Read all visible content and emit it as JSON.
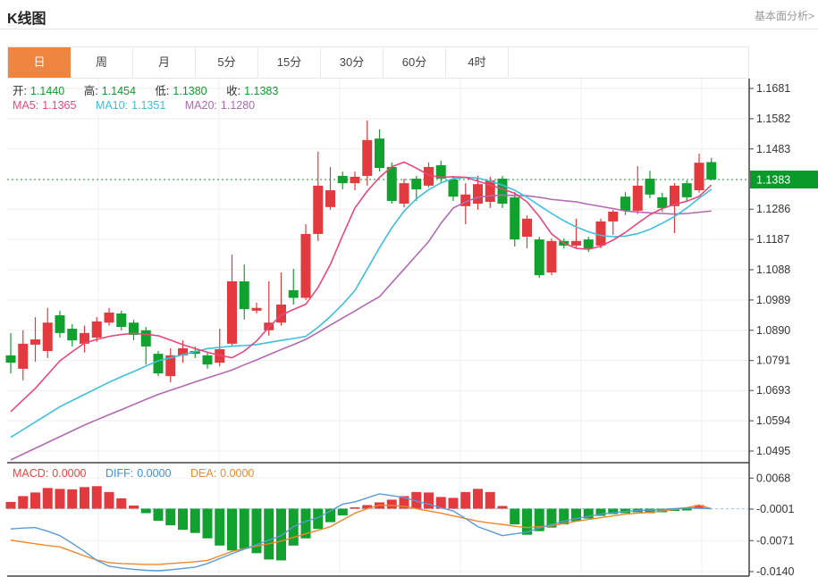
{
  "header": {
    "title": "K线图",
    "link": "基本面分析>"
  },
  "tabs": [
    {
      "key": "day",
      "label": "日",
      "active": true
    },
    {
      "key": "week",
      "label": "周",
      "active": false
    },
    {
      "key": "month",
      "label": "月",
      "active": false
    },
    {
      "key": "5min",
      "label": "5分",
      "active": false
    },
    {
      "key": "15min",
      "label": "15分",
      "active": false
    },
    {
      "key": "30min",
      "label": "30分",
      "active": false
    },
    {
      "key": "60min",
      "label": "60分",
      "active": false
    },
    {
      "key": "4hour",
      "label": "4时",
      "active": false
    }
  ],
  "ohlc": {
    "open_label": "开:",
    "open": "1.1440",
    "high_label": "高:",
    "high": "1.1454",
    "low_label": "低:",
    "low": "1.1380",
    "close_label": "收:",
    "close": "1.1383"
  },
  "ma_row": {
    "ma5_label": "MA5:",
    "ma5": "1.1365",
    "ma10_label": "MA10:",
    "ma10": "1.1351",
    "ma20_label": "MA20:",
    "ma20": "1.1280"
  },
  "macd_row": {
    "macd_label": "MACD:",
    "macd": "0.0000",
    "diff_label": "DIFF:",
    "diff": "0.0000",
    "dea_label": "DEA:",
    "dea": "0.0000"
  },
  "colors": {
    "accent_orange": "#ee8540",
    "up_red": "#e23a3e",
    "down_green": "#11a12f",
    "badge_green": "#089b2a",
    "current_line_green": "#0a9b2a",
    "ma5_line": "#e8487c",
    "ma10_line": "#3ec0dd",
    "ma20_line": "#b269b2",
    "diff_line": "#5b9bd5",
    "dea_line": "#f0862b",
    "ohlc_value_green": "#0a9e2c",
    "macd_text_red": "#e8473f",
    "diff_text_blue": "#3f8fdd",
    "dea_text_orange": "#f08c2e",
    "axis_text": "#333333",
    "grid": "#ededed"
  },
  "chart_data": {
    "type": "candlestick+macd",
    "title": "K线图",
    "legend": [
      "MA5",
      "MA10",
      "MA20",
      "MACD",
      "DIFF",
      "DEA"
    ],
    "price_axis_ticks": [
      1.1681,
      1.1582,
      1.1483,
      1.1383,
      1.1286,
      1.1187,
      1.1088,
      1.0989,
      1.089,
      1.0791,
      1.0693,
      1.0594,
      1.0495
    ],
    "current_price": 1.1383,
    "macd_axis_ticks": [
      0.0068,
      -0.0001,
      -0.0071,
      -0.014
    ],
    "candles_ohlc": [
      [
        1.0808,
        1.0881,
        1.0749,
        1.0784
      ],
      [
        1.0764,
        1.089,
        1.0726,
        1.0846
      ],
      [
        1.0843,
        1.0933,
        1.0787,
        1.086
      ],
      [
        1.0822,
        1.0963,
        1.0799,
        1.0915
      ],
      [
        1.0939,
        1.0954,
        1.0866,
        1.0881
      ],
      [
        1.0895,
        1.091,
        1.0837,
        1.0857
      ],
      [
        1.0846,
        1.0905,
        1.0817,
        1.0881
      ],
      [
        1.0866,
        1.0933,
        1.0852,
        1.0919
      ],
      [
        1.0915,
        1.0963,
        1.0905,
        1.0948
      ],
      [
        1.0945,
        1.0954,
        1.089,
        1.0901
      ],
      [
        1.0915,
        1.0925,
        1.0857,
        1.0875
      ],
      [
        1.089,
        1.0901,
        1.0778,
        1.0837
      ],
      [
        1.0813,
        1.0822,
        1.074,
        1.0749
      ],
      [
        1.074,
        1.0831,
        1.072,
        1.0808
      ],
      [
        1.0808,
        1.0857,
        1.0784,
        1.0831
      ],
      [
        1.0822,
        1.0837,
        1.0799,
        1.0813
      ],
      [
        1.0808,
        1.0817,
        1.0764,
        1.0778
      ],
      [
        1.0784,
        1.0895,
        1.0772,
        1.0828
      ],
      [
        1.0846,
        1.1138,
        1.0837,
        1.105
      ],
      [
        1.105,
        1.1105,
        1.0925,
        1.0959
      ],
      [
        1.0954,
        1.098,
        1.0945,
        1.0963
      ],
      [
        1.089,
        1.105,
        1.0872,
        1.0915
      ],
      [
        1.0915,
        1.1079,
        1.0905,
        1.0974
      ],
      [
        1.1021,
        1.1091,
        1.0974,
        1.0996
      ],
      [
        1.0996,
        1.1237,
        1.0989,
        1.1205
      ],
      [
        1.1205,
        1.1474,
        1.1182,
        1.1363
      ],
      [
        1.1293,
        1.1424,
        1.1284,
        1.1348
      ],
      [
        1.1395,
        1.1409,
        1.1351,
        1.1371
      ],
      [
        1.1371,
        1.1409,
        1.1348,
        1.1392
      ],
      [
        1.1395,
        1.1576,
        1.1363,
        1.1512
      ],
      [
        1.1517,
        1.1547,
        1.1409,
        1.1421
      ],
      [
        1.1424,
        1.1439,
        1.1304,
        1.1313
      ],
      [
        1.1304,
        1.1386,
        1.1292,
        1.1371
      ],
      [
        1.1386,
        1.1395,
        1.1313,
        1.1351
      ],
      [
        1.1363,
        1.1439,
        1.1357,
        1.1424
      ],
      [
        1.143,
        1.1445,
        1.1371,
        1.1386
      ],
      [
        1.1383,
        1.1395,
        1.1313,
        1.1327
      ],
      [
        1.1296,
        1.1371,
        1.1237,
        1.1334
      ],
      [
        1.1304,
        1.1395,
        1.1284,
        1.1368
      ],
      [
        1.131,
        1.1392,
        1.129,
        1.138
      ],
      [
        1.1386,
        1.1395,
        1.129,
        1.1304
      ],
      [
        1.1325,
        1.1342,
        1.1164,
        1.1187
      ],
      [
        1.1196,
        1.1266,
        1.1158,
        1.1255
      ],
      [
        1.1187,
        1.1196,
        1.1061,
        1.107
      ],
      [
        1.1079,
        1.119,
        1.107,
        1.1182
      ],
      [
        1.1182,
        1.119,
        1.1158,
        1.1167
      ],
      [
        1.1167,
        1.1255,
        1.1158,
        1.1182
      ],
      [
        1.1187,
        1.1196,
        1.1146,
        1.1158
      ],
      [
        1.1167,
        1.1255,
        1.1158,
        1.1246
      ],
      [
        1.1246,
        1.1284,
        1.1202,
        1.1278
      ],
      [
        1.1327,
        1.1342,
        1.1267,
        1.1281
      ],
      [
        1.1281,
        1.1427,
        1.127,
        1.1363
      ],
      [
        1.1386,
        1.1412,
        1.1322,
        1.1334
      ],
      [
        1.1325,
        1.134,
        1.1278,
        1.129
      ],
      [
        1.1296,
        1.1371,
        1.1208,
        1.1363
      ],
      [
        1.1371,
        1.138,
        1.1313,
        1.1325
      ],
      [
        1.1348,
        1.1468,
        1.134,
        1.1438
      ],
      [
        1.144,
        1.1454,
        1.138,
        1.1383
      ]
    ],
    "ma5": [
      1.0624,
      1.0662,
      1.07,
      1.0745,
      1.079,
      1.082,
      1.0848,
      1.086,
      1.087,
      1.0876,
      1.088,
      1.0877,
      1.0872,
      1.0858,
      1.0843,
      1.083,
      1.0818,
      1.0808,
      1.08,
      1.0822,
      1.0855,
      1.09,
      1.094,
      1.0958,
      1.0975,
      1.103,
      1.1105,
      1.12,
      1.129,
      1.1345,
      1.139,
      1.1425,
      1.144,
      1.142,
      1.1398,
      1.139,
      1.1392,
      1.139,
      1.1378,
      1.1365,
      1.1352,
      1.1338,
      1.131,
      1.1262,
      1.1205,
      1.1175,
      1.1158,
      1.1155,
      1.1165,
      1.1185,
      1.121,
      1.124,
      1.1268,
      1.1288,
      1.1302,
      1.1312,
      1.1328,
      1.1365
    ],
    "ma10": [
      1.054,
      1.0565,
      1.059,
      1.0615,
      1.064,
      1.066,
      1.068,
      1.07,
      1.072,
      1.0738,
      1.0755,
      1.0773,
      1.079,
      1.08,
      1.081,
      1.082,
      1.083,
      1.0834,
      1.0838,
      1.084,
      1.0843,
      1.085,
      1.0857,
      1.0863,
      1.087,
      1.09,
      1.0935,
      1.0975,
      1.102,
      1.109,
      1.116,
      1.1225,
      1.128,
      1.132,
      1.135,
      1.1372,
      1.1386,
      1.139,
      1.1388,
      1.1378,
      1.1365,
      1.1348,
      1.1325,
      1.1298,
      1.1272,
      1.1248,
      1.1228,
      1.1212,
      1.12,
      1.1196,
      1.1198,
      1.1206,
      1.122,
      1.124,
      1.1262,
      1.129,
      1.1322,
      1.1351
    ],
    "ma20": [
      1.0466,
      1.0485,
      1.0504,
      1.0523,
      1.0542,
      1.0561,
      1.058,
      1.0597,
      1.0614,
      1.063,
      1.0647,
      1.0664,
      1.068,
      1.0694,
      1.0707,
      1.0721,
      1.0734,
      1.0747,
      1.076,
      1.0777,
      1.0793,
      1.081,
      1.0827,
      1.0843,
      1.086,
      1.0883,
      1.0907,
      1.093,
      1.0953,
      1.0977,
      1.1,
      1.1045,
      1.109,
      1.1135,
      1.118,
      1.124,
      1.129,
      1.131,
      1.1325,
      1.133,
      1.1332,
      1.1331,
      1.133,
      1.1325,
      1.1318,
      1.1314,
      1.131,
      1.1302,
      1.1295,
      1.1288,
      1.128,
      1.1277,
      1.1274,
      1.1272,
      1.127,
      1.1272,
      1.1276,
      1.128
    ],
    "macd_hist": [
      0.0015,
      0.0028,
      0.0036,
      0.0046,
      0.0044,
      0.0043,
      0.0048,
      0.005,
      0.0037,
      0.0023,
      0.0007,
      -0.001,
      -0.0027,
      -0.0037,
      -0.0047,
      -0.0054,
      -0.0066,
      -0.0082,
      -0.0093,
      -0.0089,
      -0.0099,
      -0.0113,
      -0.0115,
      -0.0082,
      -0.0066,
      -0.0045,
      -0.003,
      -0.0015,
      0.0003,
      0.0008,
      0.0014,
      0.002,
      0.0028,
      0.0037,
      0.0036,
      0.0026,
      0.0024,
      0.0037,
      0.0044,
      0.0037,
      0.0006,
      -0.0035,
      -0.0058,
      -0.005,
      -0.0042,
      -0.0035,
      -0.0028,
      -0.0022,
      -0.0016,
      -0.0012,
      -0.001,
      -0.0008,
      -0.001,
      -0.0008,
      -0.0005,
      -0.0004,
      0.0008,
      0.0
    ],
    "diff": [
      -0.0045,
      -0.0043,
      -0.0042,
      -0.005,
      -0.006,
      -0.0077,
      -0.0095,
      -0.0115,
      -0.0128,
      -0.0132,
      -0.0135,
      -0.0137,
      -0.0138,
      -0.0136,
      -0.0133,
      -0.013,
      -0.0122,
      -0.0111,
      -0.01,
      -0.009,
      -0.008,
      -0.007,
      -0.006,
      -0.004,
      -0.0028,
      -0.002,
      -0.0005,
      0.001,
      0.0015,
      0.0024,
      0.0033,
      0.0029,
      0.0025,
      0.0017,
      0.001,
      0.0002,
      -0.0005,
      -0.0022,
      -0.004,
      -0.005,
      -0.006,
      -0.0056,
      -0.0052,
      -0.0043,
      -0.0035,
      -0.0028,
      -0.0022,
      -0.0017,
      -0.0012,
      -0.0009,
      -0.0006,
      -0.0004,
      -0.0003,
      -0.0002,
      0.0,
      0.0002,
      0.0001,
      0.0
    ],
    "dea": [
      -0.007,
      -0.0074,
      -0.0078,
      -0.0082,
      -0.0085,
      -0.0095,
      -0.0105,
      -0.0114,
      -0.012,
      -0.0122,
      -0.0123,
      -0.0124,
      -0.0124,
      -0.0122,
      -0.012,
      -0.0118,
      -0.0115,
      -0.0105,
      -0.0095,
      -0.0089,
      -0.0083,
      -0.0078,
      -0.0072,
      -0.0064,
      -0.0056,
      -0.0048,
      -0.004,
      -0.0025,
      -0.001,
      0.0,
      0.0008,
      0.0007,
      0.0005,
      0.0,
      -0.0005,
      -0.001,
      -0.0016,
      -0.0022,
      -0.0028,
      -0.0032,
      -0.0035,
      -0.0039,
      -0.0042,
      -0.004,
      -0.0038,
      -0.0033,
      -0.0028,
      -0.0024,
      -0.002,
      -0.0016,
      -0.0012,
      -0.001,
      -0.0008,
      -0.0005,
      -0.0002,
      0.0002,
      0.0008,
      0.0
    ]
  }
}
